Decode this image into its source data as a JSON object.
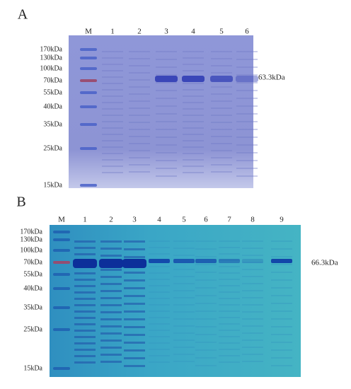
{
  "panels": [
    {
      "label": "A",
      "lanes": [
        "M",
        "1",
        "2",
        "3",
        "4",
        "5",
        "6"
      ],
      "markers": [
        "170kDa",
        "130kDa",
        "100kDa",
        "70kDa",
        "55kDa",
        "40kDa",
        "35kDa",
        "25kDa",
        "15kDa"
      ],
      "band_label": "63.3kDa"
    },
    {
      "label": "B",
      "lanes": [
        "M",
        "1",
        "2",
        "3",
        "4",
        "5",
        "6",
        "7",
        "8",
        "9"
      ],
      "markers": [
        "170kDa",
        "130kDa",
        "100kDa",
        "70kDa",
        "55kDa",
        "40kDa",
        "35kDa",
        "25kDa",
        "15kDa"
      ],
      "band_label": "66.3kDa"
    }
  ]
}
